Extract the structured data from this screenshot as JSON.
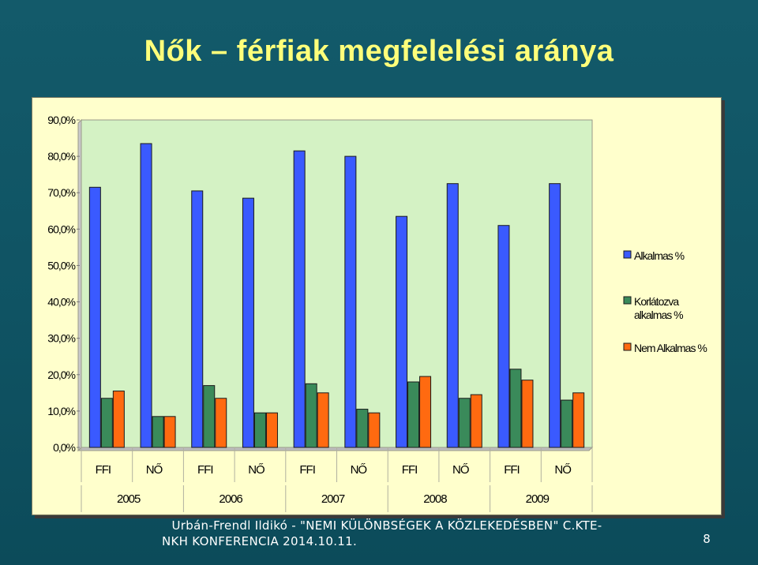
{
  "slide": {
    "title": "Nők – férfiak megfelelési aránya",
    "footer_line1": "Urbán-Frendl Ildikó - \"NEMI KÜLÖNBSÉGEK A KÖZLEKEDÉSBEN\" C.KTE-",
    "footer_line2": "NKH KONFERENCIA 2014.10.11.",
    "page_number": "8"
  },
  "chart_data": {
    "type": "bar",
    "title": "",
    "xlabel": "",
    "ylabel": "",
    "ylim": [
      0,
      90
    ],
    "y_ticks": [
      "0,0%",
      "10,0%",
      "20,0%",
      "30,0%",
      "40,0%",
      "50,0%",
      "60,0%",
      "70,0%",
      "80,0%",
      "90,0%"
    ],
    "categories": [
      "FFI",
      "NŐ",
      "FFI",
      "NŐ",
      "FFI",
      "NŐ",
      "FFI",
      "NŐ",
      "FFI",
      "NŐ"
    ],
    "groups": [
      "2005",
      "2006",
      "2007",
      "2008",
      "2009"
    ],
    "series": [
      {
        "name": "Alkalmas %",
        "color": "#3a5aff",
        "values": [
          71.5,
          83.5,
          70.5,
          68.5,
          81.5,
          80.0,
          63.5,
          72.5,
          61.0,
          72.5
        ]
      },
      {
        "name": "Korlátozva alkalmas %",
        "color": "#3a8a5a",
        "values": [
          13.5,
          8.5,
          17.0,
          9.5,
          17.5,
          10.5,
          18.0,
          13.5,
          21.5,
          13.0
        ]
      },
      {
        "name": "Nem Alkalmas %",
        "color": "#ff6a10",
        "values": [
          15.5,
          8.5,
          13.5,
          9.5,
          15.0,
          9.5,
          19.5,
          14.5,
          18.5,
          15.0
        ]
      }
    ],
    "legend_placement": "right",
    "grid": false
  }
}
